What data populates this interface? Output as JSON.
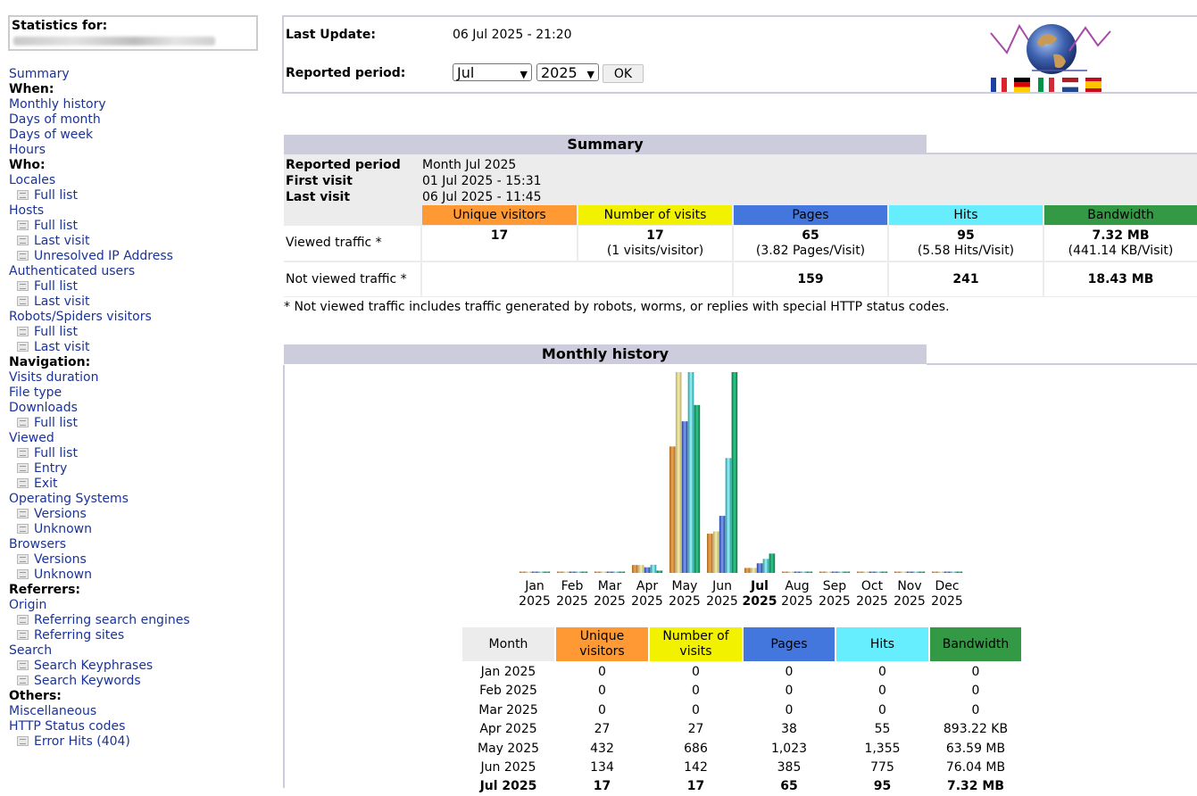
{
  "sidebar": {
    "stats_title": "Statistics for:",
    "menu": [
      {
        "label": "Summary",
        "kind": "link",
        "name": "menu-summary"
      },
      {
        "label": "When:",
        "kind": "heading",
        "name": "menu-heading-when"
      },
      {
        "label": "Monthly history",
        "kind": "link",
        "name": "menu-monthly-history"
      },
      {
        "label": "Days of month",
        "kind": "link",
        "name": "menu-days-of-month"
      },
      {
        "label": "Days of week",
        "kind": "link",
        "name": "menu-days-of-week"
      },
      {
        "label": "Hours",
        "kind": "link",
        "name": "menu-hours"
      },
      {
        "label": "Who:",
        "kind": "heading",
        "name": "menu-heading-who"
      },
      {
        "label": "Locales",
        "kind": "link",
        "name": "menu-locales"
      },
      {
        "label": "Full list",
        "kind": "sub",
        "name": "menu-locales-full-list"
      },
      {
        "label": "Hosts",
        "kind": "link",
        "name": "menu-hosts"
      },
      {
        "label": "Full list",
        "kind": "sub",
        "name": "menu-hosts-full-list"
      },
      {
        "label": "Last visit",
        "kind": "sub",
        "name": "menu-hosts-last-visit"
      },
      {
        "label": "Unresolved IP Address",
        "kind": "sub",
        "name": "menu-hosts-unresolved-ip"
      },
      {
        "label": "Authenticated users",
        "kind": "link",
        "name": "menu-authenticated-users"
      },
      {
        "label": "Full list",
        "kind": "sub",
        "name": "menu-auth-full-list"
      },
      {
        "label": "Last visit",
        "kind": "sub",
        "name": "menu-auth-last-visit"
      },
      {
        "label": "Robots/Spiders visitors",
        "kind": "link",
        "name": "menu-robots"
      },
      {
        "label": "Full list",
        "kind": "sub",
        "name": "menu-robots-full-list"
      },
      {
        "label": "Last visit",
        "kind": "sub",
        "name": "menu-robots-last-visit"
      },
      {
        "label": "Navigation:",
        "kind": "heading",
        "name": "menu-heading-navigation"
      },
      {
        "label": "Visits duration",
        "kind": "link",
        "name": "menu-visits-duration"
      },
      {
        "label": "File type",
        "kind": "link",
        "name": "menu-file-type"
      },
      {
        "label": "Downloads",
        "kind": "link",
        "name": "menu-downloads"
      },
      {
        "label": "Full list",
        "kind": "sub",
        "name": "menu-downloads-full-list"
      },
      {
        "label": "Viewed",
        "kind": "link",
        "name": "menu-viewed"
      },
      {
        "label": "Full list",
        "kind": "sub",
        "name": "menu-viewed-full-list"
      },
      {
        "label": "Entry",
        "kind": "sub",
        "name": "menu-viewed-entry"
      },
      {
        "label": "Exit",
        "kind": "sub",
        "name": "menu-viewed-exit"
      },
      {
        "label": "Operating Systems",
        "kind": "link",
        "name": "menu-operating-systems"
      },
      {
        "label": "Versions",
        "kind": "sub",
        "name": "menu-os-versions"
      },
      {
        "label": "Unknown",
        "kind": "sub",
        "name": "menu-os-unknown"
      },
      {
        "label": "Browsers",
        "kind": "link",
        "name": "menu-browsers"
      },
      {
        "label": "Versions",
        "kind": "sub",
        "name": "menu-browsers-versions"
      },
      {
        "label": "Unknown",
        "kind": "sub",
        "name": "menu-browsers-unknown"
      },
      {
        "label": "Referrers:",
        "kind": "heading",
        "name": "menu-heading-referrers"
      },
      {
        "label": "Origin",
        "kind": "link",
        "name": "menu-origin"
      },
      {
        "label": "Referring search engines",
        "kind": "sub",
        "name": "menu-referring-search-engines"
      },
      {
        "label": "Referring sites",
        "kind": "sub",
        "name": "menu-referring-sites"
      },
      {
        "label": "Search",
        "kind": "link",
        "name": "menu-search"
      },
      {
        "label": "Search Keyphrases",
        "kind": "sub",
        "name": "menu-search-keyphrases"
      },
      {
        "label": "Search Keywords",
        "kind": "sub",
        "name": "menu-search-keywords"
      },
      {
        "label": "Others:",
        "kind": "heading",
        "name": "menu-heading-others"
      },
      {
        "label": "Miscellaneous",
        "kind": "link",
        "name": "menu-miscellaneous"
      },
      {
        "label": "HTTP Status codes",
        "kind": "link",
        "name": "menu-http-status-codes"
      },
      {
        "label": "Error Hits (404)",
        "kind": "sub",
        "name": "menu-error-hits-404"
      }
    ]
  },
  "header": {
    "last_update_label": "Last Update:",
    "last_update_value": "06 Jul 2025 - 21:20",
    "reported_period_label": "Reported period:",
    "month_select": "Jul",
    "year_select": "2025",
    "ok_label": "OK"
  },
  "colors": {
    "visitors": "#ff9933",
    "visits": "#f2f200",
    "pages": "#4477dd",
    "hits": "#66eeff",
    "bandwidth": "#339944",
    "section_bg": "#ccccdd",
    "link": "#1a3399"
  },
  "summary": {
    "title": "Summary",
    "reported_period_label": "Reported period",
    "reported_period_value": "Month Jul 2025",
    "first_visit_label": "First visit",
    "first_visit_value": "01 Jul 2025 - 15:31",
    "last_visit_label": "Last visit",
    "last_visit_value": "06 Jul 2025 - 11:45",
    "columns": [
      "Unique visitors",
      "Number of visits",
      "Pages",
      "Hits",
      "Bandwidth"
    ],
    "viewed_label": "Viewed traffic *",
    "viewed": {
      "visitors": "17",
      "visits": "17",
      "visits_sub": "(1 visits/visitor)",
      "pages": "65",
      "pages_sub": "(3.82 Pages/Visit)",
      "hits": "95",
      "hits_sub": "(5.58 Hits/Visit)",
      "bandwidth": "7.32 MB",
      "bandwidth_sub": "(441.14 KB/Visit)"
    },
    "not_viewed_label": "Not viewed traffic *",
    "not_viewed": {
      "pages": "159",
      "hits": "241",
      "bandwidth": "18.43 MB"
    },
    "note": "* Not viewed traffic includes traffic generated by robots, worms, or replies with special HTTP status codes."
  },
  "monthly": {
    "title": "Monthly history",
    "current_month": "Jul",
    "year": "2025",
    "table_headers": [
      "Month",
      "Unique visitors",
      "Number of visits",
      "Pages",
      "Hits",
      "Bandwidth"
    ],
    "rows": [
      [
        "Jan 2025",
        "0",
        "0",
        "0",
        "0",
        "0"
      ],
      [
        "Feb 2025",
        "0",
        "0",
        "0",
        "0",
        "0"
      ],
      [
        "Mar 2025",
        "0",
        "0",
        "0",
        "0",
        "0"
      ],
      [
        "Apr 2025",
        "27",
        "27",
        "38",
        "55",
        "893.22 KB"
      ],
      [
        "May 2025",
        "432",
        "686",
        "1,023",
        "1,355",
        "63.59 MB"
      ],
      [
        "Jun 2025",
        "134",
        "142",
        "385",
        "775",
        "76.04 MB"
      ],
      [
        "Jul 2025",
        "17",
        "17",
        "65",
        "95",
        "7.32 MB"
      ]
    ]
  },
  "chart_data": {
    "type": "bar",
    "categories": [
      "Jan 2025",
      "Feb 2025",
      "Mar 2025",
      "Apr 2025",
      "May 2025",
      "Jun 2025",
      "Jul 2025",
      "Aug 2025",
      "Sep 2025",
      "Oct 2025",
      "Nov 2025",
      "Dec 2025"
    ],
    "series": [
      {
        "name": "Unique visitors",
        "values": [
          0,
          0,
          0,
          27,
          432,
          134,
          17,
          0,
          0,
          0,
          0,
          0
        ]
      },
      {
        "name": "Number of visits",
        "values": [
          0,
          0,
          0,
          27,
          686,
          142,
          17,
          0,
          0,
          0,
          0,
          0
        ]
      },
      {
        "name": "Pages",
        "values": [
          0,
          0,
          0,
          38,
          1023,
          385,
          65,
          0,
          0,
          0,
          0,
          0
        ]
      },
      {
        "name": "Hits",
        "values": [
          0,
          0,
          0,
          55,
          1355,
          775,
          95,
          0,
          0,
          0,
          0,
          0
        ]
      },
      {
        "name": "Bandwidth",
        "unit": "MB",
        "values": [
          0,
          0,
          0,
          0.87,
          63.59,
          76.04,
          7.32,
          0,
          0,
          0,
          0,
          0
        ]
      }
    ],
    "scale_groups": [
      [
        "Unique visitors",
        "Number of visits"
      ],
      [
        "Pages",
        "Hits"
      ],
      [
        "Bandwidth"
      ]
    ],
    "month_labels": [
      "Jan",
      "Feb",
      "Mar",
      "Apr",
      "May",
      "Jun",
      "Jul",
      "Aug",
      "Sep",
      "Oct",
      "Nov",
      "Dec"
    ],
    "title": "",
    "xlabel": "",
    "ylabel": "",
    "grid": false,
    "legend": "none"
  }
}
